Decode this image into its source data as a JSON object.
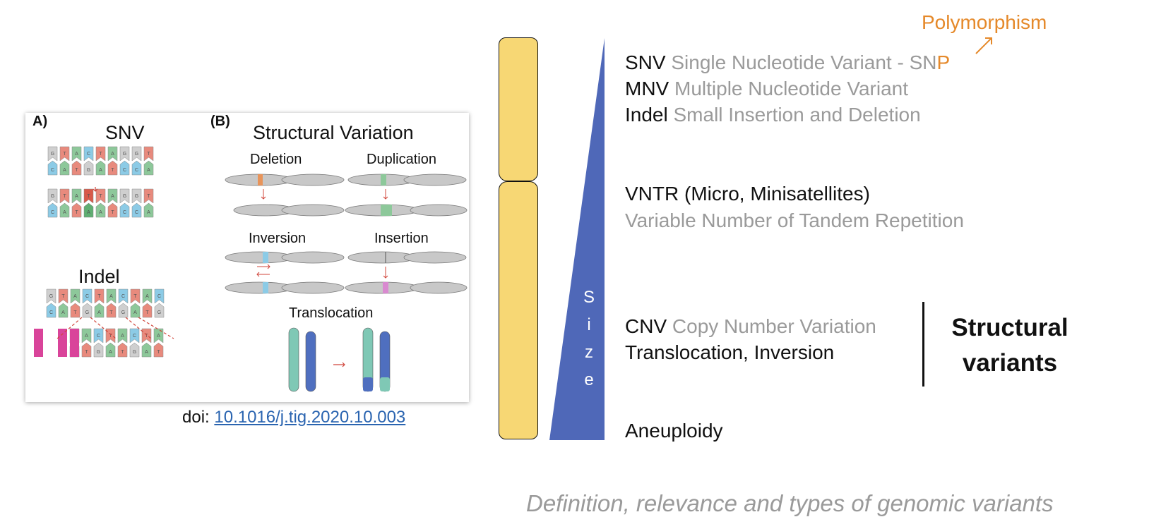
{
  "figure": {
    "panel_a": "A)",
    "panel_b": "(B)",
    "snv_title": "SNV",
    "indel_title": "Indel",
    "sv_title": "Structural Variation",
    "deletion": "Deletion",
    "duplication": "Duplication",
    "inversion": "Inversion",
    "insertion": "Insertion",
    "translocation": "Translocation",
    "snv_seq_top": [
      "G",
      "T",
      "A",
      "C",
      "T",
      "A",
      "G",
      "G",
      "T"
    ],
    "snv_seq_bottom": [
      "C",
      "A",
      "T",
      "G",
      "A",
      "T",
      "C",
      "C",
      "A"
    ],
    "snv_mut_top": [
      "G",
      "T",
      "A",
      "T",
      "T",
      "A",
      "G",
      "G",
      "T"
    ],
    "snv_mut_bottom": [
      "C",
      "A",
      "T",
      "A",
      "A",
      "T",
      "C",
      "C",
      "A"
    ],
    "indel_seq_top": [
      "G",
      "T",
      "A",
      "C",
      "T",
      "A",
      "C",
      "T",
      "A",
      "C"
    ],
    "indel_seq_bottom": [
      "C",
      "A",
      "T",
      "G",
      "A",
      "T",
      "G",
      "A",
      "T",
      "G"
    ],
    "indel_mut_top": [
      "",
      "",
      "",
      "T",
      "A",
      "C",
      "T",
      "A",
      "C",
      "T",
      "A"
    ],
    "indel_mut_bottom": [
      "",
      "",
      "",
      "A",
      "T",
      "G",
      "A",
      "T",
      "G",
      "A",
      "T"
    ],
    "colors": {
      "A": "#8dc89a",
      "T": "#e88a7d",
      "C": "#8ccbe6",
      "G": "#cfcfcf",
      "pink": "#d9449a"
    }
  },
  "doi": {
    "prefix": "doi: ",
    "link": "10.1016/j.tig.2020.10.003"
  },
  "size_letters": [
    "S",
    "i",
    "z",
    "e"
  ],
  "polymorphism": "Polymorphism",
  "variants": {
    "snv_abbr": "SNV",
    "snv_desc_main": "Single Nucleotide Variant - SN",
    "snv_desc_last": "P",
    "mnv_abbr": "MNV",
    "mnv_desc": "Multiple Nucleotide Variant",
    "indel_abbr": "Indel",
    "indel_desc": "Small Insertion and Deletion",
    "vntr_abbr": "VNTR (Micro, Minisatellites)",
    "vntr_desc": "Variable Number of Tandem Repetition",
    "cnv_abbr": "CNV",
    "cnv_desc": "Copy Number Variation",
    "translocation": "Translocation, Inversion",
    "aneuploidy": "Aneuploidy"
  },
  "structural_variants": "Structural variants",
  "caption": "Definition, relevance and types of genomic variants",
  "accent_colors": {
    "chromosome": "#f7d774",
    "triangle": "#4f68b8",
    "orange": "#e5892a",
    "gray": "#9a9a9a"
  }
}
